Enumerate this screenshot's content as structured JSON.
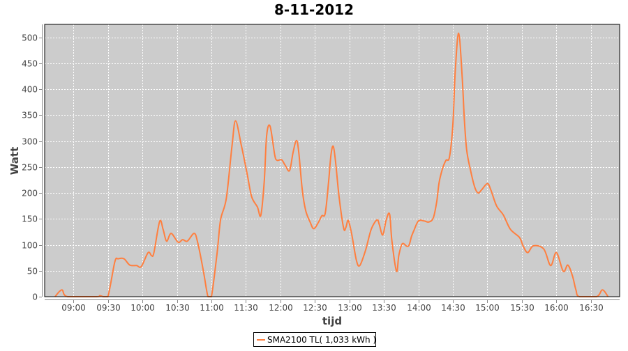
{
  "chart_data": {
    "type": "line",
    "title": "8-11-2012",
    "xlabel": "tijd",
    "ylabel": "Watt",
    "xlim": [
      "08:35",
      "16:55"
    ],
    "ylim": [
      0,
      525
    ],
    "x_ticks": [
      "09:00",
      "09:30",
      "10:00",
      "10:30",
      "11:00",
      "11:30",
      "12:00",
      "12:30",
      "13:00",
      "13:30",
      "14:00",
      "14:30",
      "15:00",
      "15:30",
      "16:00",
      "16:30"
    ],
    "y_ticks": [
      0,
      50,
      100,
      150,
      200,
      250,
      300,
      350,
      400,
      450,
      500
    ],
    "grid": true,
    "legend_position": "bottom",
    "colors": {
      "plot_background": "#cccccc",
      "grid": "#ffffff",
      "series": "#ff7f3f"
    },
    "series": [
      {
        "name": "SMA2100 TL( 1,033 kWh )",
        "points": [
          [
            "08:44",
            0
          ],
          [
            "08:50",
            13
          ],
          [
            "08:55",
            0
          ],
          [
            "09:20",
            0
          ],
          [
            "09:23",
            2
          ],
          [
            "09:26",
            0
          ],
          [
            "09:30",
            0
          ],
          [
            "09:36",
            67
          ],
          [
            "09:39",
            73
          ],
          [
            "09:44",
            73
          ],
          [
            "09:49",
            61
          ],
          [
            "09:55",
            60
          ],
          [
            "09:59",
            58
          ],
          [
            "10:05",
            85
          ],
          [
            "10:08",
            79
          ],
          [
            "10:10",
            85
          ],
          [
            "10:15",
            145
          ],
          [
            "10:18",
            130
          ],
          [
            "10:21",
            107
          ],
          [
            "10:25",
            122
          ],
          [
            "10:31",
            105
          ],
          [
            "10:35",
            110
          ],
          [
            "10:39",
            107
          ],
          [
            "10:45",
            122
          ],
          [
            "10:48",
            105
          ],
          [
            "10:53",
            50
          ],
          [
            "10:57",
            0
          ],
          [
            "11:00",
            0
          ],
          [
            "11:05",
            85
          ],
          [
            "11:08",
            148
          ],
          [
            "11:13",
            190
          ],
          [
            "11:18",
            292
          ],
          [
            "11:21",
            339
          ],
          [
            "11:26",
            292
          ],
          [
            "11:31",
            238
          ],
          [
            "11:35",
            193
          ],
          [
            "11:40",
            173
          ],
          [
            "11:43",
            157
          ],
          [
            "11:46",
            224
          ],
          [
            "11:48",
            310
          ],
          [
            "11:51",
            329
          ],
          [
            "11:55",
            274
          ],
          [
            "11:57",
            263
          ],
          [
            "12:01",
            264
          ],
          [
            "12:04",
            254
          ],
          [
            "12:08",
            243
          ],
          [
            "12:11",
            278
          ],
          [
            "12:14",
            301
          ],
          [
            "12:16",
            278
          ],
          [
            "12:19",
            206
          ],
          [
            "12:22",
            166
          ],
          [
            "12:26",
            143
          ],
          [
            "12:29",
            131
          ],
          [
            "12:33",
            143
          ],
          [
            "12:36",
            156
          ],
          [
            "12:39",
            161
          ],
          [
            "12:42",
            224
          ],
          [
            "12:44",
            274
          ],
          [
            "12:46",
            290
          ],
          [
            "12:48",
            260
          ],
          [
            "12:51",
            193
          ],
          [
            "12:55",
            132
          ],
          [
            "12:57",
            134
          ],
          [
            "12:59",
            147
          ],
          [
            "13:02",
            121
          ],
          [
            "13:06",
            71
          ],
          [
            "13:09",
            60
          ],
          [
            "13:14",
            89
          ],
          [
            "13:19",
            130
          ],
          [
            "13:24",
            148
          ],
          [
            "13:26",
            139
          ],
          [
            "13:29",
            119
          ],
          [
            "13:32",
            148
          ],
          [
            "13:35",
            159
          ],
          [
            "13:37",
            107
          ],
          [
            "13:41",
            49
          ],
          [
            "13:43",
            80
          ],
          [
            "13:46",
            102
          ],
          [
            "13:50",
            97
          ],
          [
            "13:52",
            100
          ],
          [
            "13:54",
            116
          ],
          [
            "13:56",
            127
          ],
          [
            "14:00",
            146
          ],
          [
            "14:05",
            146
          ],
          [
            "14:09",
            144
          ],
          [
            "14:13",
            152
          ],
          [
            "14:16",
            184
          ],
          [
            "14:18",
            220
          ],
          [
            "14:21",
            247
          ],
          [
            "14:24",
            263
          ],
          [
            "14:27",
            269
          ],
          [
            "14:30",
            332
          ],
          [
            "14:32",
            432
          ],
          [
            "14:35",
            508
          ],
          [
            "14:38",
            427
          ],
          [
            "14:40",
            341
          ],
          [
            "14:42",
            283
          ],
          [
            "14:45",
            247
          ],
          [
            "14:49",
            211
          ],
          [
            "14:52",
            200
          ],
          [
            "14:55",
            206
          ],
          [
            "15:00",
            218
          ],
          [
            "15:03",
            206
          ],
          [
            "15:08",
            175
          ],
          [
            "15:14",
            157
          ],
          [
            "15:20",
            130
          ],
          [
            "15:28",
            114
          ],
          [
            "15:31",
            98
          ],
          [
            "15:35",
            85
          ],
          [
            "15:40",
            98
          ],
          [
            "15:49",
            92
          ],
          [
            "15:55",
            60
          ],
          [
            "16:00",
            85
          ],
          [
            "16:06",
            49
          ],
          [
            "16:10",
            61
          ],
          [
            "16:14",
            40
          ],
          [
            "16:17",
            13
          ],
          [
            "16:20",
            0
          ],
          [
            "16:35",
            0
          ],
          [
            "16:40",
            13
          ],
          [
            "16:45",
            0
          ]
        ]
      }
    ]
  }
}
